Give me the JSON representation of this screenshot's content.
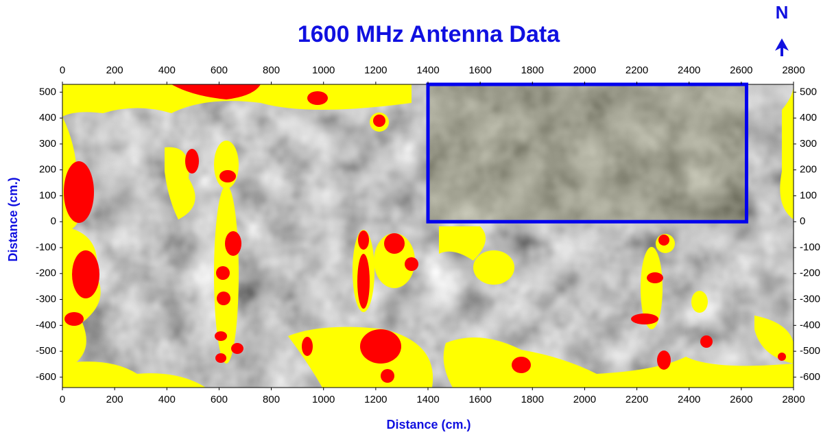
{
  "chart_data": {
    "type": "contour",
    "title": "1600 MHz Antenna Data",
    "north_label": "N",
    "xlabel": "Distance (cm.)",
    "ylabel": "Distance (cm.)",
    "xlim": [
      0,
      2800
    ],
    "ylim": [
      -640,
      530
    ],
    "xticks": [
      0,
      200,
      400,
      600,
      800,
      1000,
      1200,
      1400,
      1600,
      1800,
      2000,
      2200,
      2400,
      2600,
      2800
    ],
    "yticks": [
      -600,
      -500,
      -400,
      -300,
      -200,
      -100,
      0,
      100,
      200,
      300,
      400,
      500
    ],
    "highlight": {
      "x": [
        1400,
        2620
      ],
      "y": [
        0,
        530
      ],
      "color": "#0000ee"
    }
  }
}
